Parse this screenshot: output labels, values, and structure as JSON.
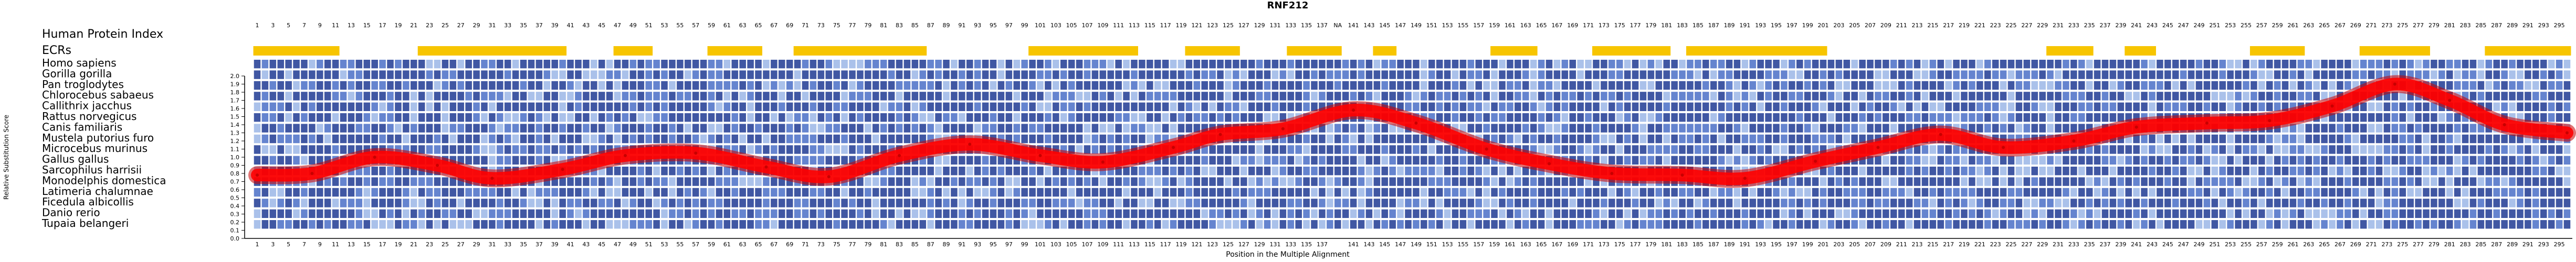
{
  "chart_data": {
    "type": "line",
    "title": "RNF212",
    "xlabel": "Position in the Multiple Alignment",
    "ylabel": "Relative Substitution Score",
    "xlim": [
      1,
      296
    ],
    "ylim": [
      0,
      2.0
    ],
    "y_ticks": [
      0,
      0.1,
      0.2,
      0.3,
      0.4,
      0.5,
      0.6,
      0.7,
      0.8,
      0.9,
      1.0,
      1.1,
      1.2,
      1.3,
      1.4,
      1.5,
      1.6,
      1.7,
      1.8,
      1.9,
      2.0
    ],
    "grid": false,
    "legend": "none",
    "track_labels": [
      "Human Protein Index",
      "ECRs"
    ],
    "species": [
      "Homo sapiens",
      "Gorilla gorilla",
      "Pan troglodytes",
      "Chlorocebus sabaeus",
      "Callithrix jacchus",
      "Rattus norvegicus",
      "Canis familiaris",
      "Mustela putorius furo",
      "Microcebus murinus",
      "Gallus gallus",
      "Sarcophilus harrisii",
      "Monodelphis domestica",
      "Latimeria chalumnae",
      "Ficedula albicollis",
      "Danio rerio",
      "Tupaia belangeri"
    ],
    "human_protein_index_label": "NA",
    "ecr_segments": [
      [
        1,
        11
      ],
      [
        22,
        40
      ],
      [
        47,
        51
      ],
      [
        59,
        65
      ],
      [
        70,
        86
      ],
      [
        100,
        113
      ],
      [
        120,
        126
      ],
      [
        133,
        139
      ],
      [
        144,
        146
      ],
      [
        159,
        164
      ],
      [
        172,
        181
      ],
      [
        184,
        201
      ],
      [
        230,
        235
      ],
      [
        240,
        243
      ],
      [
        256,
        262
      ],
      [
        270,
        278
      ],
      [
        286,
        296
      ]
    ],
    "series": [
      {
        "x": [
          1,
          8,
          16,
          24,
          31,
          40,
          48,
          57,
          66,
          74,
          83,
          92,
          101,
          109,
          118,
          124,
          132,
          141,
          149,
          158,
          166,
          174,
          183,
          191,
          200,
          208,
          216,
          224,
          233,
          241,
          250,
          258,
          266,
          274,
          281,
          288,
          296
        ],
        "values": [
          0.78,
          0.8,
          1.0,
          0.9,
          0.74,
          0.85,
          1.02,
          1.05,
          0.88,
          0.76,
          1.02,
          1.16,
          1.02,
          0.94,
          1.12,
          1.28,
          1.35,
          1.58,
          1.42,
          1.1,
          0.92,
          0.8,
          0.78,
          0.74,
          0.95,
          1.12,
          1.28,
          1.12,
          1.2,
          1.37,
          1.42,
          1.45,
          1.63,
          1.9,
          1.7,
          1.4,
          1.3
        ]
      }
    ],
    "colors": {
      "curve": "#ff0000",
      "curve_outline": "#c80000",
      "ecr_bar": "#f7c500",
      "alignment_dark": "#1f3a93",
      "alignment_mid": "#4a6fc7",
      "alignment_light": "#9bb6e6",
      "axis": "#000000"
    }
  }
}
